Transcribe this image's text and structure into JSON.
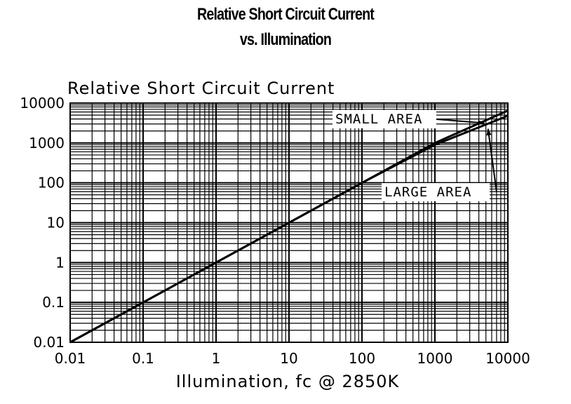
{
  "chart_data": {
    "type": "line",
    "title": "Relative Short Circuit Current",
    "subtitle": "vs. Illumination",
    "ylabel": "Relative Short Circuit Current",
    "xlabel": "Illumination, fc @ 2850K",
    "x_scale": "log",
    "y_scale": "log",
    "xlim": [
      0.01,
      10000
    ],
    "ylim": [
      0.01,
      10000
    ],
    "grid": true,
    "x_ticks": [
      "0.01",
      "0.1",
      "1",
      "10",
      "100",
      "1000",
      "10000"
    ],
    "y_ticks": [
      "10000",
      "1000",
      "100",
      "10",
      "1",
      "0.1",
      "0.01"
    ],
    "series": [
      {
        "name": "SMALL AREA",
        "x": [
          0.01,
          1,
          100,
          1000,
          10000
        ],
        "y": [
          0.01,
          1,
          100,
          1000,
          6500
        ]
      },
      {
        "name": "LARGE AREA",
        "x": [
          0.01,
          1,
          100,
          1000,
          10000
        ],
        "y": [
          0.01,
          1,
          100,
          900,
          4800
        ]
      }
    ],
    "annotations": [
      "SMALL AREA",
      "LARGE AREA"
    ]
  }
}
